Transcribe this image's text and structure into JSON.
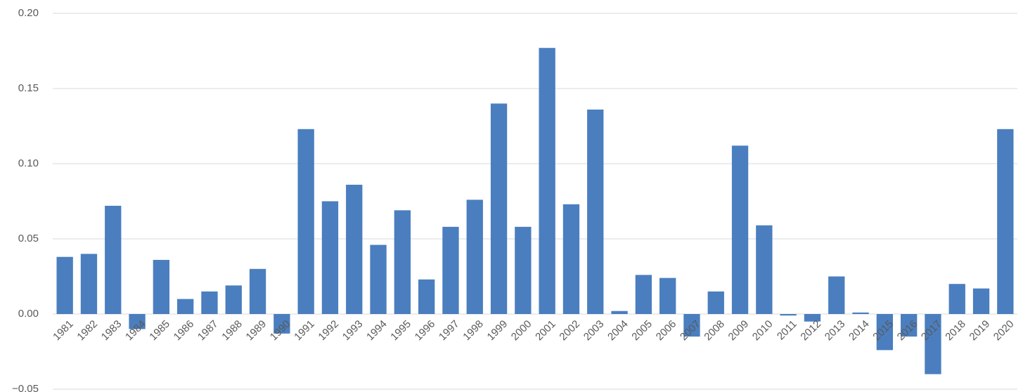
{
  "chart_data": {
    "type": "bar",
    "categories": [
      "1981",
      "1982",
      "1983",
      "1984",
      "1985",
      "1986",
      "1987",
      "1988",
      "1989",
      "1990",
      "1991",
      "1992",
      "1993",
      "1994",
      "1995",
      "1996",
      "1997",
      "1998",
      "1999",
      "2000",
      "2001",
      "2002",
      "2003",
      "2004",
      "2005",
      "2006",
      "2007",
      "2008",
      "2009",
      "2010",
      "2011",
      "2012",
      "2013",
      "2014",
      "2015",
      "2016",
      "2017",
      "2018",
      "2019",
      "2020"
    ],
    "values": [
      0.038,
      0.04,
      0.072,
      -0.01,
      0.036,
      0.01,
      0.015,
      0.019,
      0.03,
      -0.013,
      0.123,
      0.075,
      0.086,
      0.046,
      0.069,
      0.023,
      0.058,
      0.076,
      0.14,
      0.058,
      0.177,
      0.073,
      0.136,
      0.002,
      0.026,
      0.024,
      -0.015,
      0.015,
      0.112,
      0.059,
      -0.001,
      -0.005,
      0.025,
      0.001,
      -0.024,
      -0.015,
      -0.04,
      0.02,
      0.017,
      0.123
    ],
    "color": "#4a7ebf",
    "ylim": [
      -0.05,
      0.2
    ],
    "yticks": [
      {
        "value": -0.05,
        "label": "−0.05"
      },
      {
        "value": 0,
        "label": "0.00"
      },
      0.05,
      {
        "value": 0.1,
        "label": "0.10"
      },
      0.15,
      {
        "value": 0.2,
        "label": "0.20"
      }
    ],
    "grid": true
  }
}
